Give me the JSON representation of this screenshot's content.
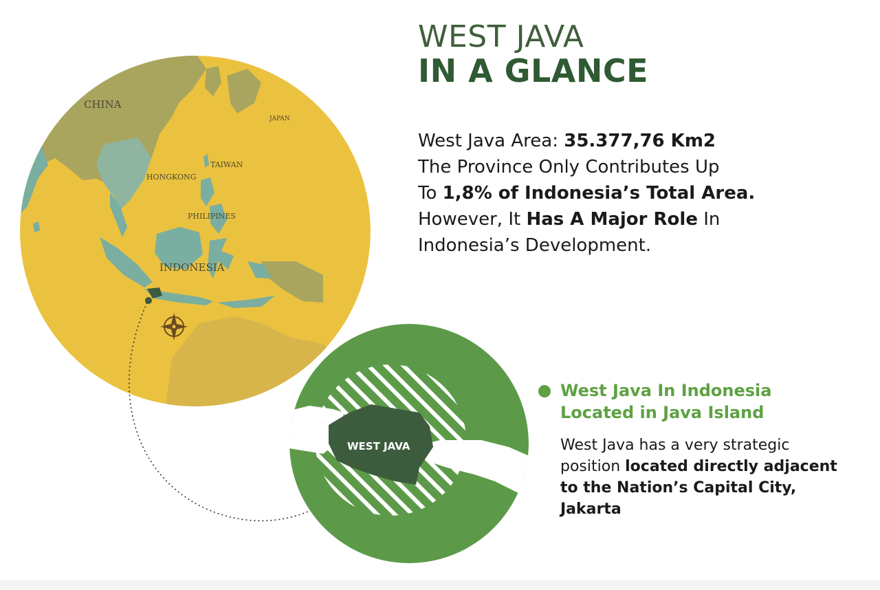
{
  "header": {
    "title_light": "WEST JAVA",
    "title_bold": "IN A GLANCE"
  },
  "summary": {
    "line1_prefix": "West Java Area: ",
    "area_value": "35.377,76 Km2",
    "line2": "The Province Only Contributes Up",
    "line3_prefix": "To ",
    "line3_bold": "1,8% of Indonesia’s Total Area.",
    "line4_prefix": "However, It ",
    "line4_bold": "Has A Major Role",
    "line4_suffix": " In",
    "line5": "Indonesia’s Development."
  },
  "legend": {
    "heading_line1": "West Java In Indonesia",
    "heading_line2": "Located in Java Island",
    "body_line1": "West Java has a very strategic",
    "body_line2_prefix": "position ",
    "body_line2_bold": "located directly adjacent",
    "body_line3": "to the Nation’s Capital City,",
    "body_line4": "Jakarta"
  },
  "map": {
    "labels": {
      "china": "CHINA",
      "japan": "JAPAN",
      "taiwan": "TAIWAN",
      "hongkong": "HONGKONG",
      "philippines": "PHILIPINES",
      "indonesia": "INDONESIA",
      "west_java": "WEST JAVA"
    },
    "colors": {
      "ocean": "#ebc23f",
      "land_green": "#a9a55e",
      "land_teal": "#7aaea0",
      "zoom_circle": "#5c9a49",
      "west_java_fill": "#3d5b3d",
      "white_land": "#ffffff",
      "accent_green": "#5ea143",
      "title_green": "#2f5a33"
    },
    "icons": [
      "compass-rose-icon",
      "location-dot-icon"
    ]
  }
}
